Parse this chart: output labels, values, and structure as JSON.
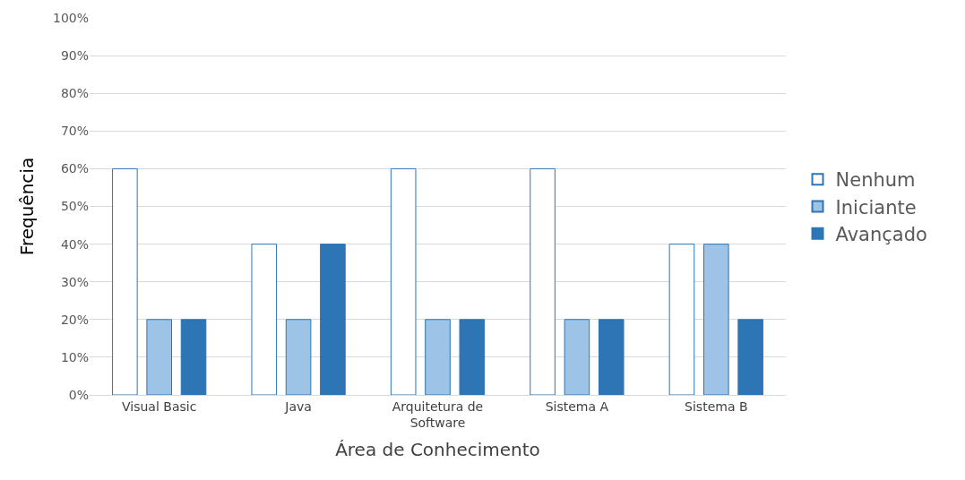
{
  "chart_data": {
    "type": "bar",
    "xlabel": "Área de Conhecimento",
    "ylabel": "Frequência",
    "categories": [
      "Visual Basic",
      "Java",
      "Arquitetura de Software",
      "Sistema A",
      "Sistema B"
    ],
    "series": [
      {
        "name": "Nenhum",
        "color": "#ffffff",
        "values": [
          60,
          40,
          60,
          60,
          40
        ]
      },
      {
        "name": "Iniciante",
        "color": "#9dc3e6",
        "values": [
          20,
          20,
          20,
          20,
          40
        ]
      },
      {
        "name": "Avançado",
        "color": "#2e75b6",
        "values": [
          20,
          40,
          20,
          20,
          20
        ]
      }
    ],
    "ylim": [
      0,
      100
    ],
    "yticks": [
      {
        "value": 0,
        "label": "0%"
      },
      {
        "value": 10,
        "label": "10%"
      },
      {
        "value": 20,
        "label": "20%"
      },
      {
        "value": 30,
        "label": "30%"
      },
      {
        "value": 40,
        "label": "40%"
      },
      {
        "value": 50,
        "label": "50%"
      },
      {
        "value": 60,
        "label": "60%"
      },
      {
        "value": 70,
        "label": "70%"
      },
      {
        "value": 80,
        "label": "80%"
      },
      {
        "value": 90,
        "label": "90%"
      },
      {
        "value": 100,
        "label": "100%"
      }
    ],
    "grid": "y",
    "legend": "right"
  }
}
